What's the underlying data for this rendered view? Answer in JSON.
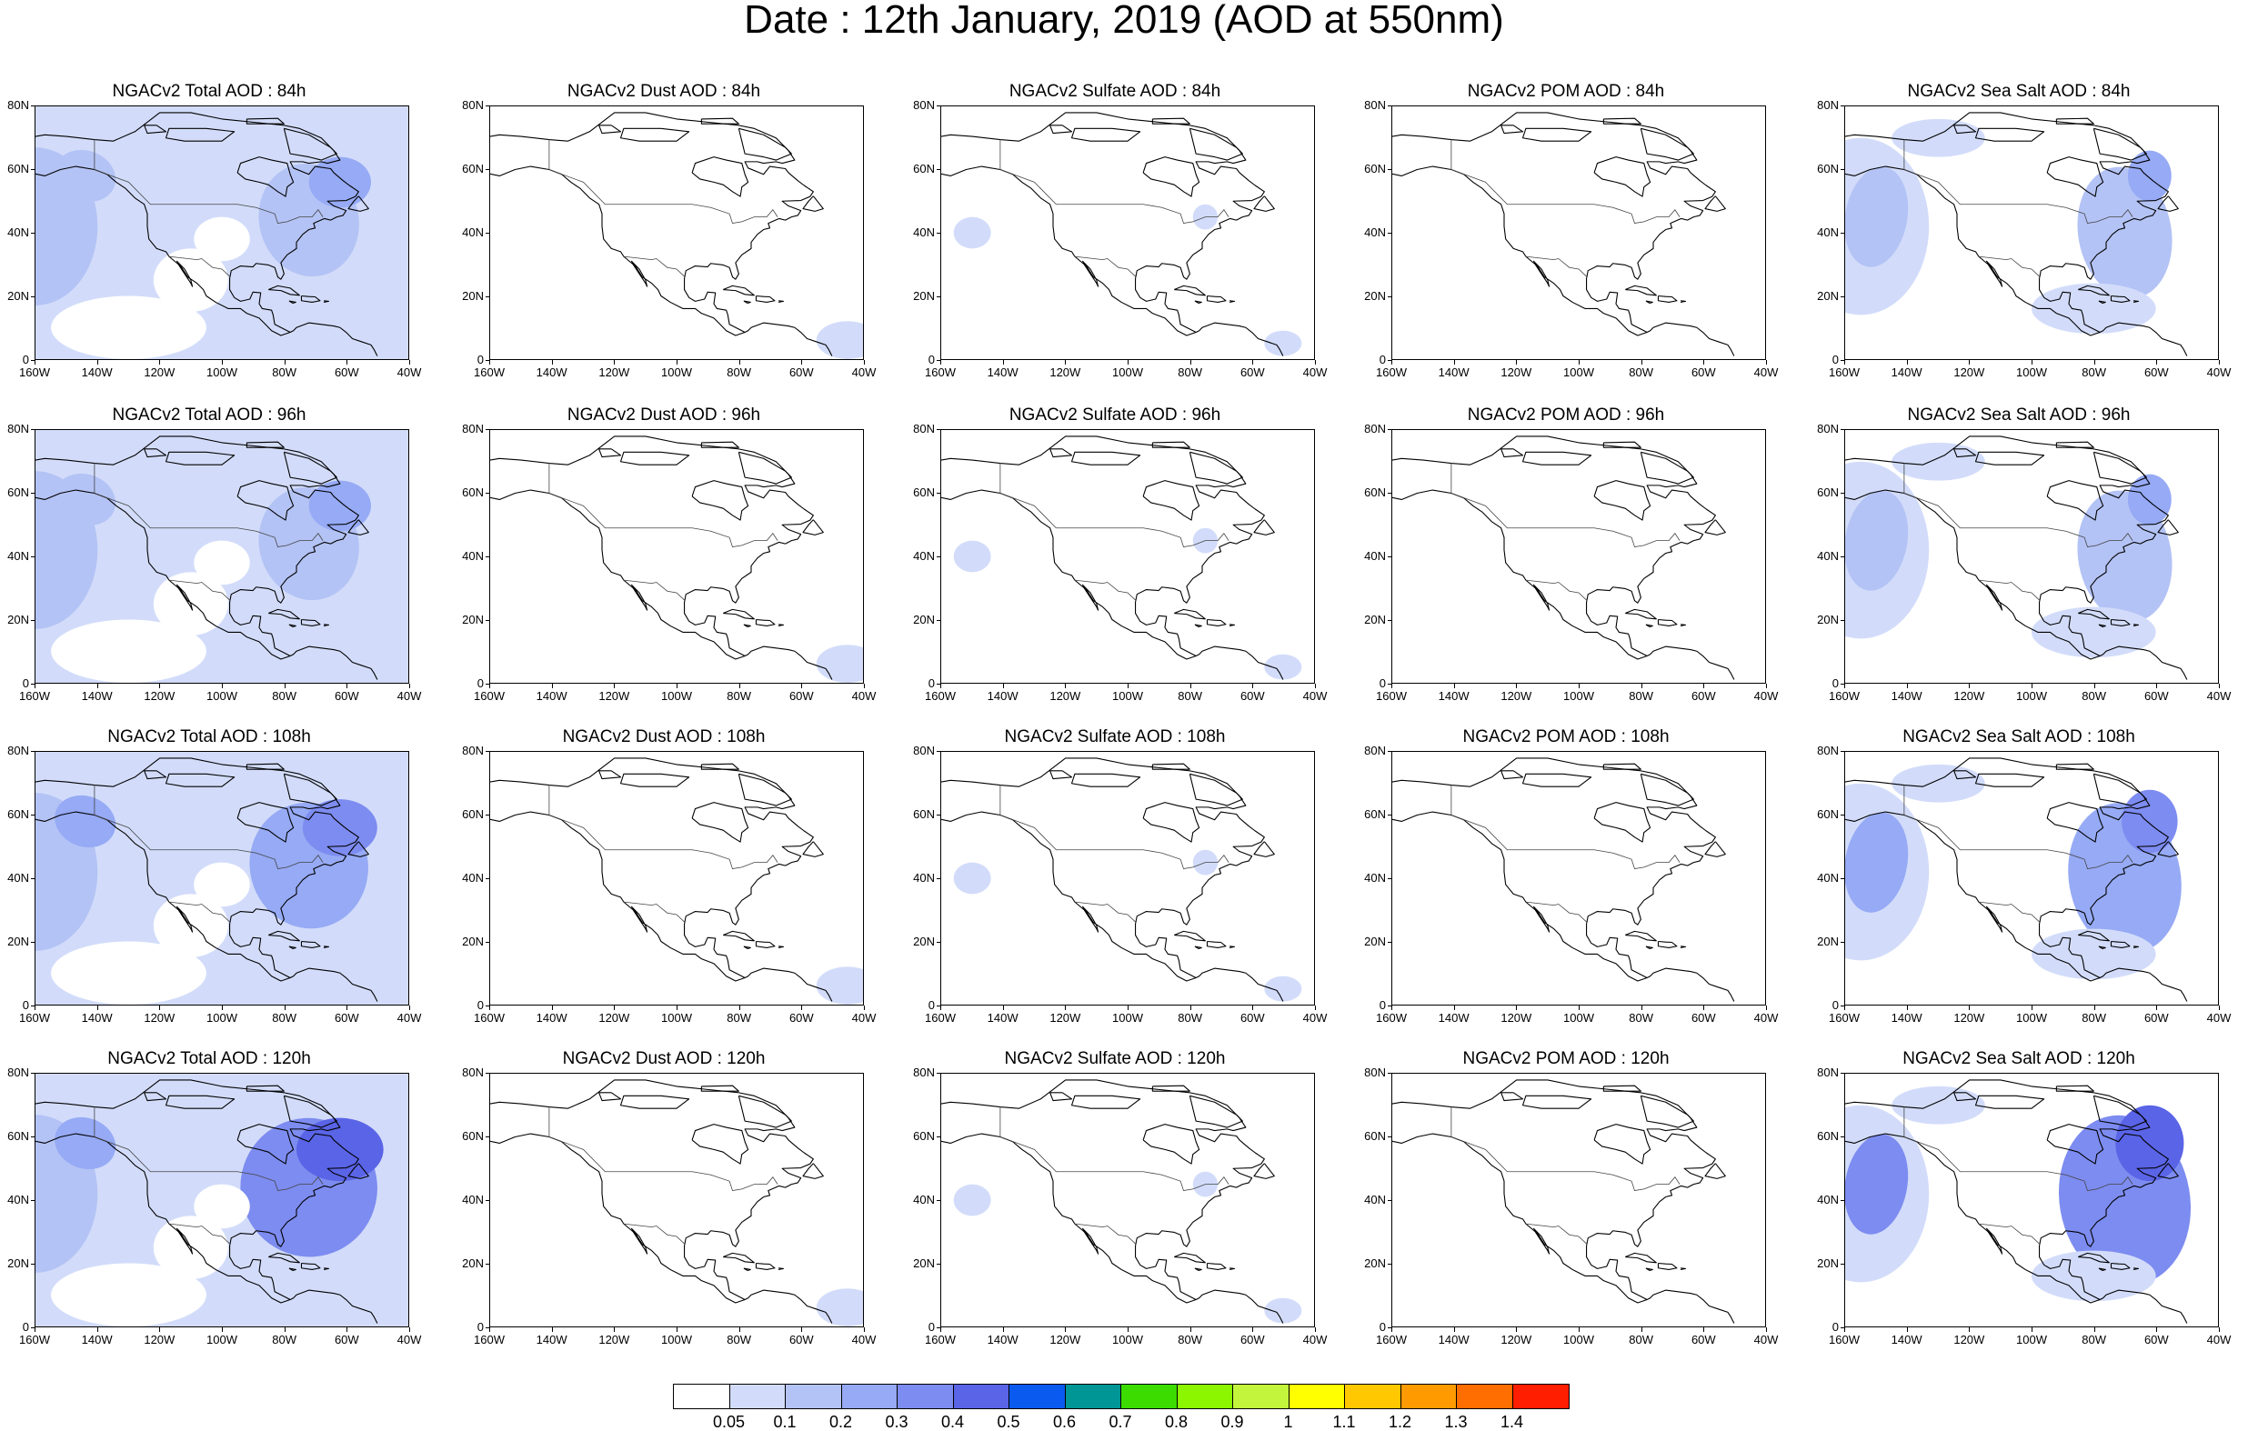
{
  "title": "Date : 12th January, 2019 (AOD at 550nm)",
  "lat_ticks": [
    "80N",
    "60N",
    "40N",
    "20N",
    "0"
  ],
  "lon_ticks": [
    "160W",
    "140W",
    "120W",
    "100W",
    "80W",
    "60W",
    "40W"
  ],
  "map_extent": {
    "lon_min": -160,
    "lon_max": -40,
    "lat_min": 0,
    "lat_max": 80
  },
  "colorbar": {
    "labels": [
      "0.05",
      "0.1",
      "0.2",
      "0.3",
      "0.4",
      "0.5",
      "0.6",
      "0.7",
      "0.8",
      "0.9",
      "1",
      "1.1",
      "1.2",
      "1.3",
      "1.4"
    ],
    "colors": [
      "#ffffff",
      "#d2dcfa",
      "#b4c3f5",
      "#96aaf5",
      "#7d8cf0",
      "#5a64e6",
      "#0a5af0",
      "#009696",
      "#3cdc00",
      "#8cf500",
      "#c3f53c",
      "#ffff00",
      "#ffc800",
      "#ff9b00",
      "#ff6e00",
      "#ff1e00"
    ]
  },
  "panels": [
    {
      "title": "NGACv2 Total AOD : 84h",
      "species": "total",
      "level": 2
    },
    {
      "title": "NGACv2 Dust AOD : 84h",
      "species": "dust",
      "level": 0
    },
    {
      "title": "NGACv2 Sulfate AOD : 84h",
      "species": "sulfate",
      "level": 0
    },
    {
      "title": "NGACv2 POM AOD : 84h",
      "species": "pom",
      "level": 0
    },
    {
      "title": "NGACv2 Sea Salt AOD : 84h",
      "species": "seasalt",
      "level": 1
    },
    {
      "title": "NGACv2 Total AOD : 96h",
      "species": "total",
      "level": 2
    },
    {
      "title": "NGACv2 Dust AOD : 96h",
      "species": "dust",
      "level": 0
    },
    {
      "title": "NGACv2 Sulfate AOD : 96h",
      "species": "sulfate",
      "level": 0
    },
    {
      "title": "NGACv2 POM AOD : 96h",
      "species": "pom",
      "level": 0
    },
    {
      "title": "NGACv2 Sea Salt AOD : 96h",
      "species": "seasalt",
      "level": 1
    },
    {
      "title": "NGACv2 Total AOD : 108h",
      "species": "total",
      "level": 3
    },
    {
      "title": "NGACv2 Dust AOD : 108h",
      "species": "dust",
      "level": 0
    },
    {
      "title": "NGACv2 Sulfate AOD : 108h",
      "species": "sulfate",
      "level": 0
    },
    {
      "title": "NGACv2 POM AOD : 108h",
      "species": "pom",
      "level": 0
    },
    {
      "title": "NGACv2 Sea Salt AOD : 108h",
      "species": "seasalt",
      "level": 2
    },
    {
      "title": "NGACv2 Total AOD : 120h",
      "species": "total",
      "level": 4
    },
    {
      "title": "NGACv2 Dust AOD : 120h",
      "species": "dust",
      "level": 0
    },
    {
      "title": "NGACv2 Sulfate AOD : 120h",
      "species": "sulfate",
      "level": 0
    },
    {
      "title": "NGACv2 POM AOD : 120h",
      "species": "pom",
      "level": 0
    },
    {
      "title": "NGACv2 Sea Salt  AOD : 120h",
      "species": "seasalt",
      "level": 3
    }
  ]
}
